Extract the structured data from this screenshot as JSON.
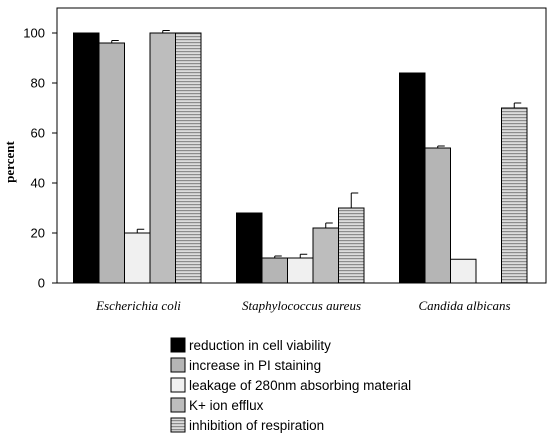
{
  "chart_data": {
    "type": "bar",
    "title": "",
    "xlabel": "",
    "ylabel": "percent",
    "ylim": [
      0,
      110
    ],
    "yticks": [
      "0",
      "20",
      "40",
      "60",
      "80",
      "100"
    ],
    "grid": false,
    "legend_position": "bottom",
    "categories": [
      "Escherichia coli",
      "Staphylococcus aureus",
      "Candida  albicans"
    ],
    "series": [
      {
        "name": "reduction in cell viability",
        "color": "#000000",
        "pattern": "solid",
        "values": [
          100,
          28,
          84
        ],
        "errors": [
          0,
          0,
          0
        ]
      },
      {
        "name": "increase in PI staining",
        "color": "#b5b5b5",
        "pattern": "solid",
        "values": [
          96,
          10,
          54
        ],
        "errors": [
          1,
          0.8,
          0.8
        ]
      },
      {
        "name": "leakage of 280nm absorbing material",
        "color": "#f0f0f0",
        "pattern": "solid",
        "values": [
          20,
          10,
          9.5
        ],
        "errors": [
          1.5,
          1.5,
          0
        ]
      },
      {
        "name": "K+ ion efflux",
        "color": "#bdbdbd",
        "pattern": "solid",
        "values": [
          100,
          22,
          null
        ],
        "errors": [
          1,
          2,
          0
        ]
      },
      {
        "name": "inhibition of respiration",
        "color": "#c8c8c8",
        "pattern": "hstripes",
        "values": [
          100,
          30,
          70
        ],
        "errors": [
          0,
          6,
          2
        ]
      }
    ]
  }
}
